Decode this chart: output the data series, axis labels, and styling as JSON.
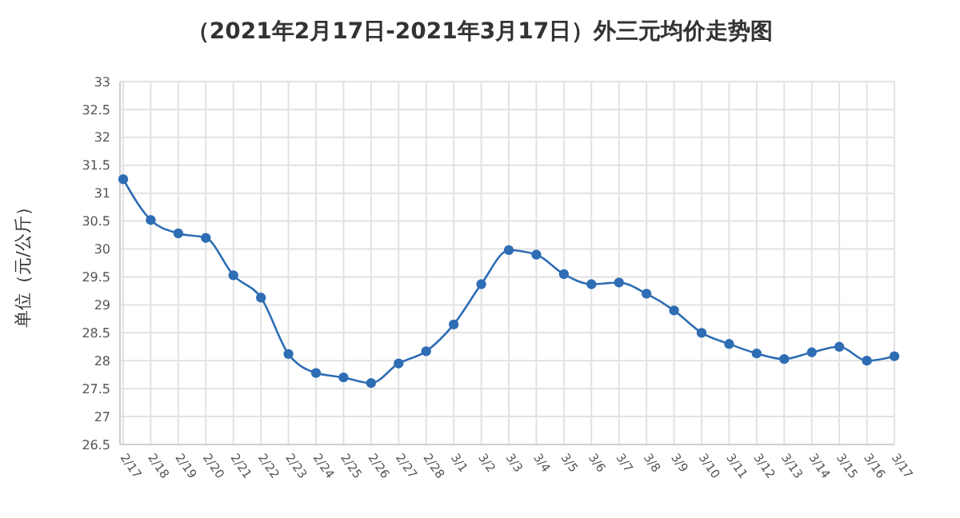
{
  "chart_data": {
    "type": "line",
    "title": "（2021年2月17日-2021年3月17日）外三元均价走势图",
    "ylabel": "单位（元/公斤）",
    "categories": [
      "2/17",
      "2/18",
      "2/19",
      "2/20",
      "2/21",
      "2/22",
      "2/23",
      "2/24",
      "2/25",
      "2/26",
      "2/27",
      "2/28",
      "3/1",
      "3/2",
      "3/3",
      "3/4",
      "3/5",
      "3/6",
      "3/7",
      "3/8",
      "3/9",
      "3/10",
      "3/11",
      "3/12",
      "3/13",
      "3/14",
      "3/15",
      "3/16",
      "3/17"
    ],
    "series": [
      {
        "color": "#2e6db4",
        "values": [
          31.25,
          30.52,
          30.28,
          30.2,
          29.53,
          29.13,
          28.12,
          27.78,
          27.7,
          27.6,
          27.95,
          28.17,
          28.65,
          29.37,
          29.98,
          29.9,
          29.55,
          29.37,
          29.4,
          29.2,
          28.9,
          28.5,
          28.3,
          28.13,
          28.03,
          28.15,
          28.25,
          28.0,
          28.08
        ]
      }
    ],
    "ylim": [
      26.5,
      33
    ],
    "yticks": [
      26.5,
      27,
      27.5,
      28,
      28.5,
      29,
      29.5,
      30,
      30.5,
      31,
      31.5,
      32,
      32.5,
      33
    ],
    "grid": true,
    "marker": "circle"
  }
}
